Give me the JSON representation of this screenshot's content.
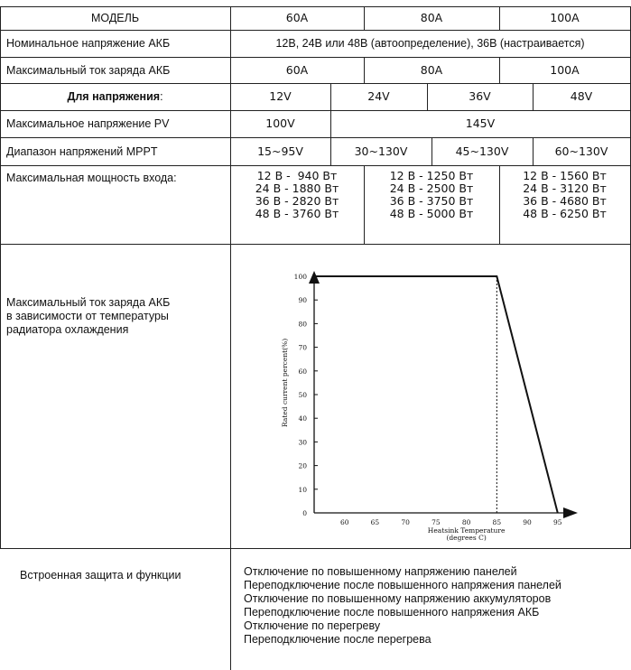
{
  "table": {
    "model": {
      "label": "МОДЕЛЬ",
      "values": [
        "60A",
        "80A",
        "100A"
      ]
    },
    "nominal_voltage": {
      "label": "Номинальное напряжение АКБ",
      "value": "12В, 24В или 48В (автоопределение), 36В (настраивается)"
    },
    "max_charge_current": {
      "label": "Максимальный ток заряда АКБ",
      "values": [
        "60A",
        "80A",
        "100A"
      ]
    },
    "for_voltage": {
      "label": "Для напряжения",
      "suffix": ":",
      "values": [
        "12V",
        "24V",
        "36V",
        "48V"
      ]
    },
    "max_pv_voltage": {
      "label": "Максимальное напряжение PV",
      "values": [
        "100V",
        "145V"
      ]
    },
    "mppt_range": {
      "label": "Диапазон напряжений MPPT",
      "values": [
        "15~95V",
        "30~130V",
        "45~130V",
        "60~130V"
      ]
    },
    "max_input_power": {
      "label": "Максимальная мощность входа:",
      "groups": [
        [
          "12 В -  940 Вт",
          "24 В - 1880 Вт",
          "36 В - 2820 Вт",
          "48 В - 3760 Вт"
        ],
        [
          "12 В - 1250 Вт",
          "24 В - 2500 Вт",
          "36 В - 3750 Вт",
          "48 В - 5000 Вт"
        ],
        [
          "12 В - 1560 Вт",
          "24 В - 3120 Вт",
          "36 В - 4680 Вт",
          "48 В - 6250 Вт"
        ]
      ]
    },
    "derating": {
      "label_lines": [
        "Максимальный ток заряда АКБ",
        "в зависимости от температуры",
        "радиатора охлаждения"
      ]
    },
    "protection": {
      "label": "Встроенная защита и функции",
      "items": [
        "Отключение по повышенному напряжению панелей",
        "Переподключение после повышенного напряжения панелей",
        "Отключение по повышенному напряжению аккумуляторов",
        "Переподключение после повышенного напряжения АКБ",
        "Отключение по перегреву",
        "Переподключение после перегрева"
      ]
    }
  },
  "chart_data": {
    "type": "line",
    "x": [
      55,
      85,
      95
    ],
    "y": [
      100,
      100,
      0
    ],
    "xlim": [
      55,
      98
    ],
    "ylim": [
      0,
      100
    ],
    "xticks": [
      60,
      65,
      70,
      75,
      80,
      85,
      90,
      95
    ],
    "yticks": [
      0,
      10,
      20,
      30,
      40,
      50,
      60,
      70,
      80,
      90,
      100
    ],
    "xlabel_lines": [
      "Heatsink Temperature",
      "(degrees C)"
    ],
    "ylabel": "Rated current percent(%)",
    "annotations": [
      {
        "type": "dashed-vertical",
        "x": 85
      }
    ],
    "grid": false
  }
}
